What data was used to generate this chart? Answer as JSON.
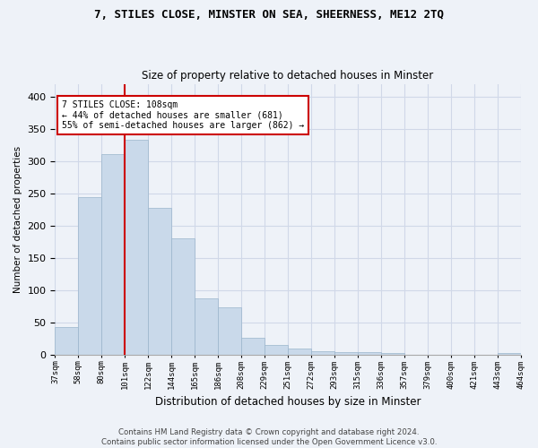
{
  "title1": "7, STILES CLOSE, MINSTER ON SEA, SHEERNESS, ME12 2TQ",
  "title2": "Size of property relative to detached houses in Minster",
  "xlabel": "Distribution of detached houses by size in Minster",
  "ylabel": "Number of detached properties",
  "bar_color": "#c9d9ea",
  "bar_edge_color": "#9ab5cc",
  "highlight_line_color": "#cc0000",
  "bin_labels": [
    "37sqm",
    "58sqm",
    "80sqm",
    "101sqm",
    "122sqm",
    "144sqm",
    "165sqm",
    "186sqm",
    "208sqm",
    "229sqm",
    "251sqm",
    "272sqm",
    "293sqm",
    "315sqm",
    "336sqm",
    "357sqm",
    "379sqm",
    "400sqm",
    "421sqm",
    "443sqm",
    "464sqm"
  ],
  "bar_heights": [
    43,
    245,
    311,
    333,
    228,
    180,
    88,
    73,
    26,
    15,
    9,
    5,
    4,
    4,
    3,
    0,
    0,
    0,
    0,
    3
  ],
  "annotation_line1": "7 STILES CLOSE: 108sqm",
  "annotation_line2": "← 44% of detached houses are smaller (681)",
  "annotation_line3": "55% of semi-detached houses are larger (862) →",
  "annotation_box_color": "#ffffff",
  "annotation_box_edge": "#cc0000",
  "ylim": [
    0,
    420
  ],
  "yticks": [
    0,
    50,
    100,
    150,
    200,
    250,
    300,
    350,
    400
  ],
  "footnote": "Contains HM Land Registry data © Crown copyright and database right 2024.\nContains public sector information licensed under the Open Government Licence v3.0.",
  "grid_color": "#d0d8e8",
  "bg_color": "#eef2f8",
  "highlight_bin_index": 3
}
